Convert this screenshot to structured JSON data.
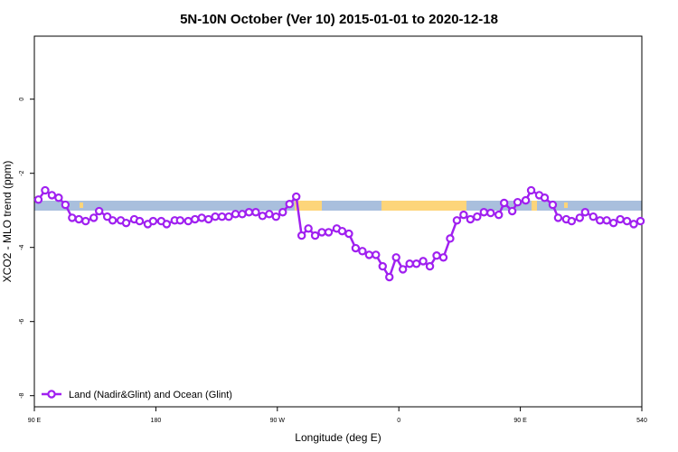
{
  "chart_data": {
    "type": "line",
    "title": "5N-10N October (Ver 10)   2015-01-01 to 2020-12-18",
    "x_label": "Longitude (deg E)",
    "y_label": "XCO2 - MLO trend (ppm)",
    "x": [
      93,
      98,
      103,
      108,
      113,
      118,
      123,
      128,
      134,
      138,
      144,
      148,
      154,
      158,
      164,
      168,
      174,
      178,
      184,
      188,
      194,
      198,
      204,
      209,
      214,
      219,
      224,
      229,
      234,
      239,
      244,
      249,
      254,
      259,
      264,
      269,
      274,
      279,
      284,
      288,
      293,
      298,
      303,
      308,
      314,
      318,
      323,
      328,
      333,
      338,
      343,
      348,
      353,
      358,
      363,
      368,
      373,
      378,
      383,
      388,
      393,
      398,
      403,
      408,
      413,
      418,
      423,
      428,
      434,
      438,
      444,
      448,
      454,
      458,
      464,
      468,
      474,
      478,
      484,
      488,
      494,
      498,
      504,
      509,
      514,
      519,
      524,
      529,
      534,
      539
    ],
    "series": [
      {
        "name": "Land (Nadir&Glint) and Ocean (Glint)",
        "color": "#a020f0",
        "values": [
          -2.71,
          -2.46,
          -2.59,
          -2.66,
          -2.85,
          -3.2,
          -3.24,
          -3.29,
          -3.2,
          -3.02,
          -3.17,
          -3.27,
          -3.27,
          -3.34,
          -3.24,
          -3.29,
          -3.37,
          -3.29,
          -3.29,
          -3.37,
          -3.27,
          -3.27,
          -3.29,
          -3.24,
          -3.2,
          -3.24,
          -3.17,
          -3.17,
          -3.17,
          -3.1,
          -3.1,
          -3.05,
          -3.05,
          -3.15,
          -3.1,
          -3.17,
          -3.05,
          -2.83,
          -2.63,
          -3.68,
          -3.49,
          -3.68,
          -3.59,
          -3.59,
          -3.49,
          -3.56,
          -3.63,
          -4.02,
          -4.1,
          -4.2,
          -4.2,
          -4.51,
          -4.8,
          -4.27,
          -4.59,
          -4.44,
          -4.44,
          -4.37,
          -4.51,
          -4.22,
          -4.27,
          -3.76,
          -3.27,
          -3.12,
          -3.24,
          -3.17,
          -3.05,
          -3.07,
          -3.12,
          -2.8,
          -3.02,
          -2.78,
          -2.73,
          -2.46,
          -2.59,
          -2.66,
          -2.85,
          -3.2,
          -3.24,
          -3.29,
          -3.2,
          -3.05,
          -3.17,
          -3.27,
          -3.27,
          -3.34,
          -3.24,
          -3.29,
          -3.37,
          -3.29
        ]
      }
    ],
    "xlim": [
      90,
      540
    ],
    "xticks": [
      {
        "value": 90,
        "label": "90 E"
      },
      180,
      {
        "value": 270,
        "label": "90 W"
      },
      {
        "value": 360,
        "label": "0"
      },
      {
        "value": 450,
        "label": "90 E"
      },
      540
    ],
    "ylim": [
      -8.3,
      1.7
    ],
    "yticks": [
      0,
      -2,
      -4,
      -6,
      -8
    ],
    "legend": "bottom-left"
  }
}
